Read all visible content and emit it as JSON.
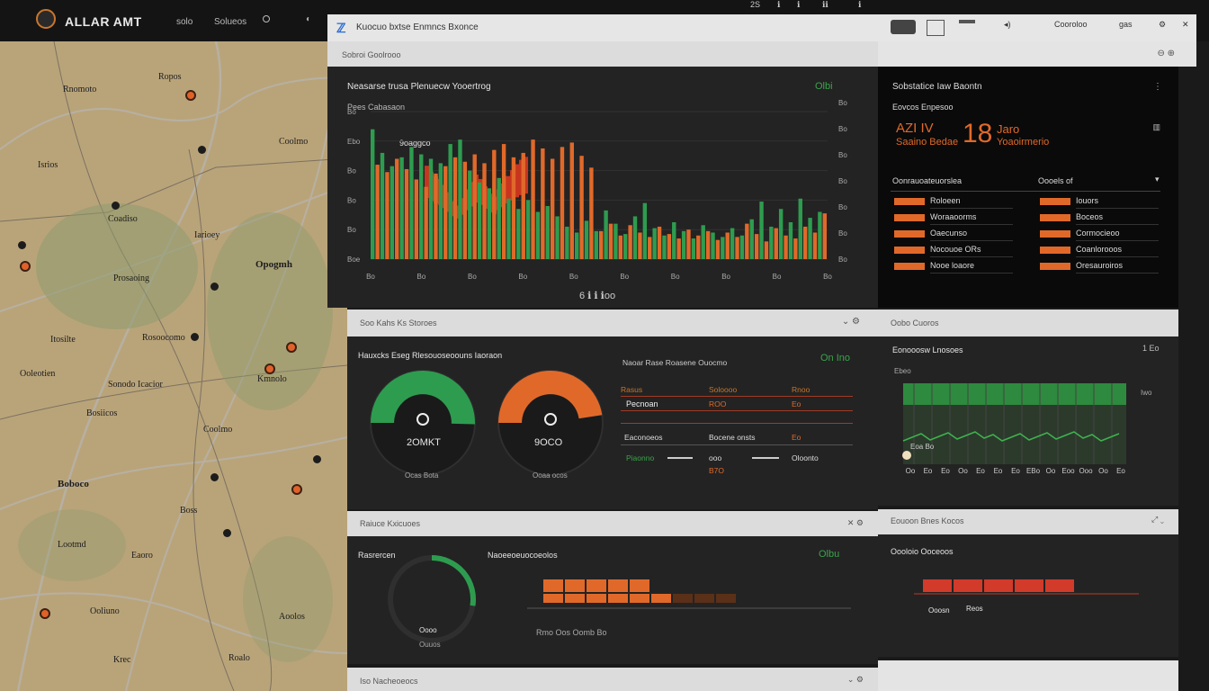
{
  "topbar": {
    "title": "ALLAR AMT",
    "nav": [
      "solo",
      "Solueos"
    ],
    "right_items": [
      "2S",
      "ℹ",
      "ℹ",
      "ℹℹ",
      "ℹ"
    ]
  },
  "map": {
    "labels": [
      {
        "t": "Ropos"
      },
      {
        "t": "Rnomoto"
      },
      {
        "t": "Isrios"
      },
      {
        "t": "Coadiso"
      },
      {
        "t": "Iarioey"
      },
      {
        "t": "Coolmo"
      },
      {
        "t": "Opogmh"
      },
      {
        "t": "Prosaoing"
      },
      {
        "t": "Rosoocomo"
      },
      {
        "t": "Itosilte"
      },
      {
        "t": "Sonodo Icacior"
      },
      {
        "t": "Ooleotien"
      },
      {
        "t": "Coolmo"
      },
      {
        "t": "Boboco"
      },
      {
        "t": "Bosiicos"
      },
      {
        "t": "Boss"
      },
      {
        "t": "Lootmd"
      },
      {
        "t": "Eaoro"
      },
      {
        "t": "Ooliuno"
      },
      {
        "t": "Krec"
      },
      {
        "t": "Aoolos"
      },
      {
        "t": "Roalo"
      },
      {
        "t": "Kmnolo"
      }
    ]
  },
  "app": {
    "logo": "ℤ",
    "title": "Kuocuo bxtse Enmncs Bxonce",
    "toolbar": [
      "Cooroloo",
      "gas"
    ],
    "subbar_label": "Sobroi Goolrooo"
  },
  "main_chart": {
    "title": "Neasarse trusa Plenuecw Yooertrog",
    "status": "Olbi",
    "sublabel": "Pees Cabasaon",
    "annotation": "9oaggco",
    "footer": "6 ℹ ℹ ℹoo"
  },
  "chart_data": {
    "type": "bar",
    "title": "Neasarse trusa Plenuecw Yooertrog",
    "xlabel": "",
    "ylabel": "",
    "y_ticks": [
      "Bo",
      "Ebo",
      "Bo",
      "Bo",
      "Bo",
      "Boe"
    ],
    "y_ticks_right": [
      "Bo",
      "Bo",
      "Bo",
      "Bo",
      "Bo",
      "Bo",
      "Bo"
    ],
    "x_ticks": [
      "Bo",
      "Bo",
      "Bo",
      "Bo",
      "Bo",
      "Bo",
      "Bo",
      "Bo",
      "Bo",
      "Bo"
    ],
    "series": [
      {
        "color": "#2e9c4f",
        "values": [
          8.8,
          7.2,
          6.3,
          6.9,
          7.6,
          7.1,
          6.8,
          6.5,
          7.8,
          8.1,
          6.0,
          5.2,
          4.8,
          5.5,
          4.1,
          3.4,
          4.0,
          3.2,
          3.6,
          2.9,
          2.2,
          1.8,
          2.6,
          1.9,
          3.3,
          2.4,
          1.7,
          2.9,
          3.8,
          2.1,
          1.6,
          2.5,
          1.9,
          1.4,
          2.3,
          1.8,
          1.5,
          2.1,
          1.6,
          2.7,
          3.9,
          2.2,
          3.4,
          2.5,
          4.1,
          2.8,
          3.2
        ]
      },
      {
        "color": "#e0692a",
        "values": [
          6.4,
          5.9,
          6.8,
          6.1,
          5.4,
          4.9,
          5.8,
          6.3,
          6.9,
          6.6,
          7.1,
          6.5,
          7.4,
          7.8,
          6.9,
          7.2,
          8.1,
          7.5,
          6.8,
          7.6,
          7.9,
          7.0,
          6.2,
          1.9,
          2.4,
          1.6,
          2.3,
          1.8,
          1.5,
          2.2,
          1.7,
          1.4,
          2.0,
          1.6,
          1.9,
          1.3,
          1.8,
          1.5,
          2.4,
          1.7,
          1.2,
          2.1,
          1.6,
          1.4,
          2.2,
          1.8,
          3.1
        ]
      },
      {
        "color": "#c8351f",
        "values": [
          4.5,
          4.1,
          3.8,
          3.6,
          3.2,
          2.7,
          2.1,
          1.8,
          2.3,
          2.9,
          3.4,
          3.9,
          3.6,
          3.1,
          2.6,
          2.4,
          2.9,
          3.3,
          3.8,
          4.2,
          4.6,
          4.9,
          5.1
        ]
      }
    ]
  },
  "stats": {
    "title": "Sobstatice Iaw Baontn",
    "subtitle": "Eovcos Enpesoo",
    "big_left": "AZI IV",
    "big_left2": "Saaino Bedae",
    "big_number": "18",
    "big_right": "Jaro",
    "big_right2": "Yoaoirmerio",
    "legend_left_title": "Oonrauoateuorslea",
    "legend_right_title": "Oooels of",
    "legend_left": [
      "Roloeen",
      "Woraaoorms",
      "Oaecunso",
      "Nocouoe ORs",
      "Nooe loaore"
    ],
    "legend_right": [
      "Iouors",
      "Boceos",
      "Cormocieoo",
      "Coanlorooos",
      "Oresauroiros"
    ]
  },
  "gauges_panel": {
    "header": "Soo Kahs Ks Storoes",
    "title": "Hauxcks  Eseg Rlesouoseoouns Iaoraon",
    "status": "On Ino",
    "gauge1": {
      "value": 0.72,
      "label": "2OMKT",
      "caption": "Ocas Bota"
    },
    "gauge2": {
      "value": 0.68,
      "label": "9OCO",
      "caption": "Ooaa ocos"
    },
    "table": {
      "title": "Naoar Rase Roasene Ouocmo",
      "headers": [
        "Rasus",
        "Soloooo",
        "Rnoo"
      ],
      "rows": [
        [
          "Pecnoan",
          "ROO",
          "Eo"
        ],
        [
          "Eaconoeos",
          "Bocene onsts",
          "Eo"
        ],
        [
          "Piaonno",
          "ooo",
          "Oloonto"
        ]
      ],
      "footer": "B7O"
    }
  },
  "hist_panel": {
    "header": "Oobo Cuoros",
    "title": "Eonooosw Lnosoes",
    "status": "1 Eo",
    "left_label": "Ebeo",
    "right_label": "Iwo",
    "x_ticks": [
      "Oo",
      "Eo",
      "Eo",
      "Oo",
      "Eo",
      "Eo",
      "Eo",
      "EBo",
      "Oo",
      "Eoo",
      "Ooo",
      "Oo",
      "Eo"
    ],
    "legend": "Eoa Bo"
  },
  "bottom_panel": {
    "header": "Raiuce Kxicuoes",
    "title_left": "Rasrercen",
    "title_mid": "Naoeeoeuocoeolos",
    "status": "Olbu",
    "gauge": {
      "value": 0.55,
      "label": "Oooo",
      "caption": "Ouuos"
    },
    "bar_values": [
      1.0,
      1.0,
      1.0,
      1.0,
      1.0
    ],
    "footer": "Rmo  Oos  Oomb  Bo"
  },
  "bottom_right": {
    "header": "Eouoon Bnes Kocos",
    "title": "Oooloio Ooceoos",
    "labels": [
      "Ooosn",
      "Reos"
    ]
  },
  "footer_strip": {
    "left": "Iso Nacheoeocs"
  }
}
